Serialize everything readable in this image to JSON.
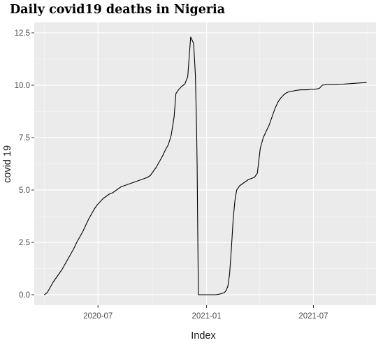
{
  "chart_data": {
    "type": "line",
    "title": "Daily covid19 deaths in Nigeria",
    "xlabel": "Index",
    "ylabel": "covid 19",
    "x_ticks": [
      "2020-07",
      "2021-01",
      "2021-07"
    ],
    "y_ticks": [
      "0.0",
      "2.5",
      "5.0",
      "7.5",
      "10.0",
      "12.5"
    ],
    "xlim": [
      "2020-03-15",
      "2021-10-15"
    ],
    "ylim": [
      -0.5,
      13
    ],
    "grid": true,
    "legend": "none",
    "colors": {
      "panel": "#ebebeb",
      "grid_major": "#ffffff",
      "grid_minor": "#f5f5f5",
      "line": "#000000",
      "tick": "#333333"
    },
    "series": [
      {
        "x": [
          "2020-04-01",
          "2020-04-06",
          "2020-04-11",
          "2020-04-16",
          "2020-04-21",
          "2020-04-26",
          "2020-05-01",
          "2020-05-06",
          "2020-05-11",
          "2020-05-16",
          "2020-05-21",
          "2020-05-26",
          "2020-05-31",
          "2020-06-05",
          "2020-06-10",
          "2020-06-15",
          "2020-06-20",
          "2020-06-25",
          "2020-06-30",
          "2020-07-05",
          "2020-07-10",
          "2020-07-15",
          "2020-07-20",
          "2020-07-25",
          "2020-07-30",
          "2020-08-04",
          "2020-08-09",
          "2020-08-14",
          "2020-08-19",
          "2020-08-24",
          "2020-08-29",
          "2020-09-03",
          "2020-09-08",
          "2020-09-13",
          "2020-09-18",
          "2020-09-23",
          "2020-09-28",
          "2020-10-03",
          "2020-10-08",
          "2020-10-13",
          "2020-10-18",
          "2020-10-23",
          "2020-10-28",
          "2020-11-02",
          "2020-11-07",
          "2020-11-10",
          "2020-11-15",
          "2020-11-20",
          "2020-11-25",
          "2020-11-30",
          "2020-12-05",
          "2020-12-10",
          "2020-12-13",
          "2020-12-15",
          "2020-12-16",
          "2020-12-17",
          "2020-12-18",
          "2020-12-18",
          "2020-12-22",
          "2020-12-27",
          "2021-01-01",
          "2021-01-06",
          "2021-01-11",
          "2021-01-16",
          "2021-01-21",
          "2021-01-26",
          "2021-01-31",
          "2021-02-03",
          "2021-02-06",
          "2021-02-09",
          "2021-02-12",
          "2021-02-15",
          "2021-02-18",
          "2021-02-21",
          "2021-02-26",
          "2021-03-03",
          "2021-03-08",
          "2021-03-13",
          "2021-03-18",
          "2021-03-23",
          "2021-03-28",
          "2021-04-02",
          "2021-04-07",
          "2021-04-12",
          "2021-04-17",
          "2021-04-22",
          "2021-04-27",
          "2021-05-02",
          "2021-05-07",
          "2021-05-12",
          "2021-05-17",
          "2021-05-22",
          "2021-05-27",
          "2021-06-01",
          "2021-06-06",
          "2021-06-11",
          "2021-06-16",
          "2021-06-21",
          "2021-06-26",
          "2021-07-01",
          "2021-07-06",
          "2021-07-11",
          "2021-07-16",
          "2021-07-21",
          "2021-07-26",
          "2021-07-31",
          "2021-08-05",
          "2021-08-10",
          "2021-08-15",
          "2021-08-20",
          "2021-08-25",
          "2021-08-30",
          "2021-09-04",
          "2021-09-09",
          "2021-09-14",
          "2021-09-19",
          "2021-09-24",
          "2021-09-29"
        ],
        "y": [
          0.0,
          0.1,
          0.35,
          0.6,
          0.8,
          1.0,
          1.2,
          1.45,
          1.7,
          1.95,
          2.2,
          2.5,
          2.75,
          3.0,
          3.3,
          3.6,
          3.85,
          4.1,
          4.3,
          4.45,
          4.6,
          4.7,
          4.8,
          4.85,
          4.95,
          5.05,
          5.15,
          5.2,
          5.25,
          5.3,
          5.35,
          5.4,
          5.45,
          5.5,
          5.55,
          5.6,
          5.7,
          5.9,
          6.1,
          6.35,
          6.6,
          6.9,
          7.15,
          7.6,
          8.5,
          9.6,
          9.8,
          9.95,
          10.05,
          10.4,
          12.3,
          12.0,
          10.5,
          8.0,
          6.1,
          3.0,
          0.3,
          0.0,
          0.0,
          0.0,
          0.0,
          0.0,
          0.0,
          0.0,
          0.02,
          0.05,
          0.1,
          0.2,
          0.4,
          1.0,
          2.2,
          3.6,
          4.5,
          5.0,
          5.2,
          5.3,
          5.4,
          5.5,
          5.55,
          5.6,
          5.8,
          7.0,
          7.5,
          7.8,
          8.1,
          8.5,
          8.9,
          9.2,
          9.4,
          9.55,
          9.65,
          9.7,
          9.72,
          9.75,
          9.77,
          9.78,
          9.78,
          9.78,
          9.8,
          9.8,
          9.82,
          9.85,
          10.0,
          10.02,
          10.03,
          10.03,
          10.03,
          10.04,
          10.05,
          10.05,
          10.06,
          10.07,
          10.08,
          10.09,
          10.1,
          10.11,
          10.12,
          10.13
        ]
      }
    ]
  }
}
